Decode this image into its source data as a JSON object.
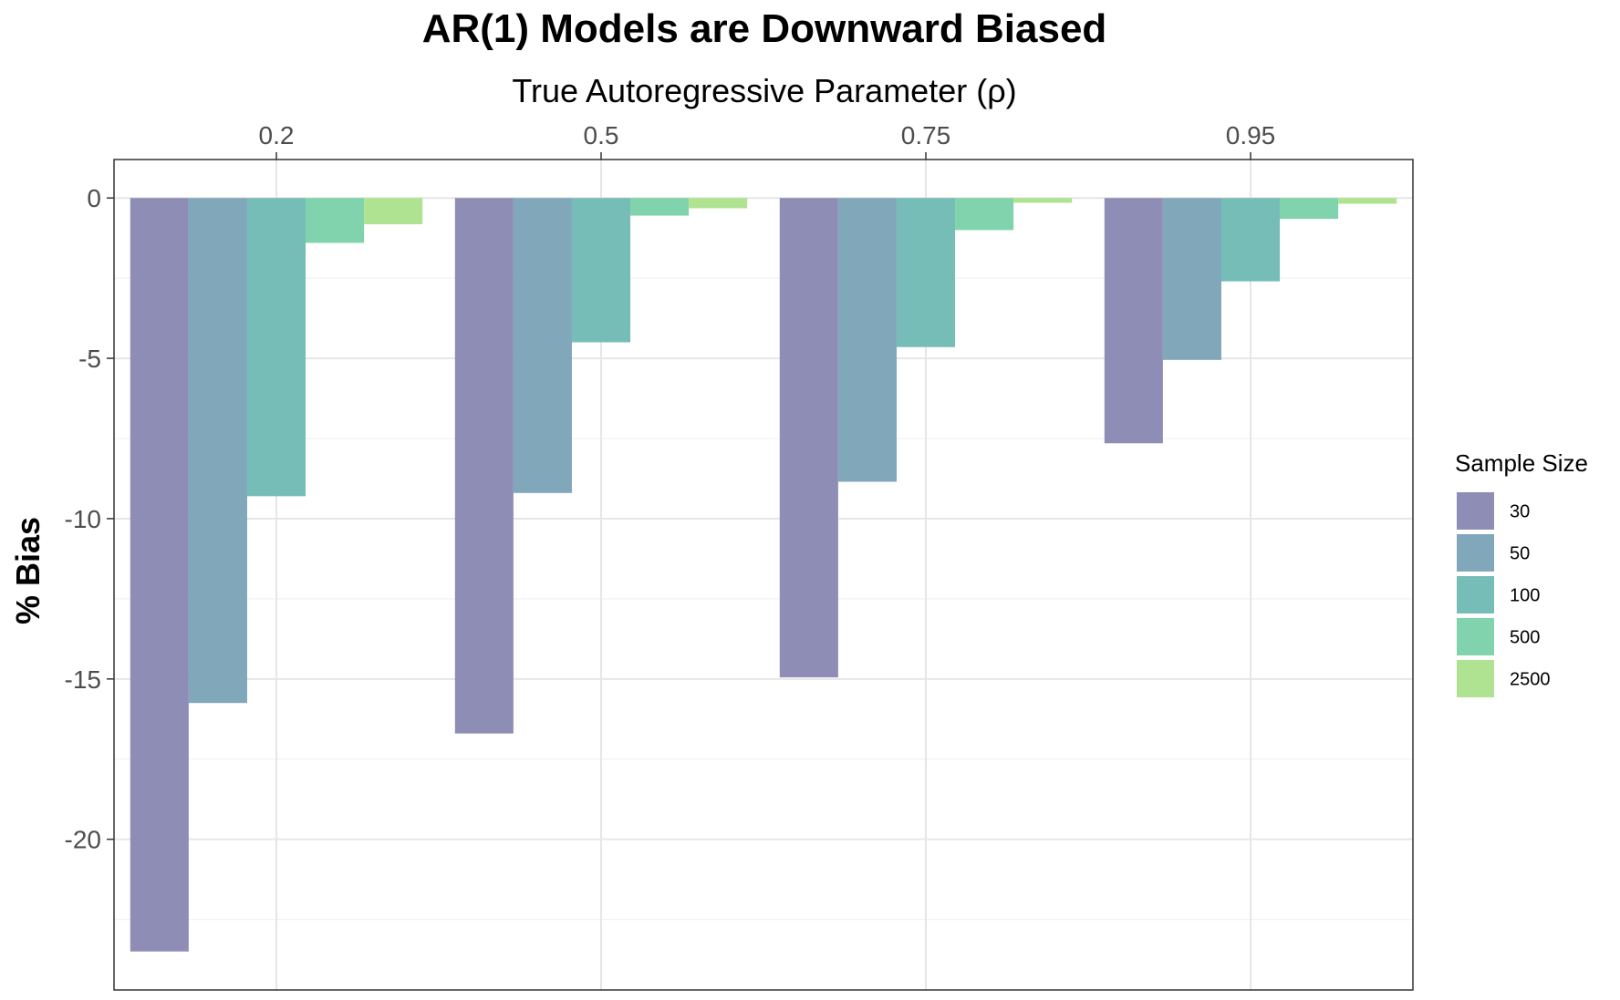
{
  "chart_data": {
    "type": "bar",
    "title": "AR(1) Models are Downward Biased",
    "xlabel": "True Autoregressive Parameter (ρ)",
    "ylabel": "% Bias",
    "x_axis_position": "top",
    "categories": [
      "0.2",
      "0.5",
      "0.75",
      "0.95"
    ],
    "y_ticks": [
      0,
      -5,
      -10,
      -15,
      -20
    ],
    "y_tick_labels": [
      "0",
      "-5",
      "-10",
      "-15",
      "-20"
    ],
    "ylim": [
      -24.7,
      1.2
    ],
    "grid": true,
    "legend": {
      "title": "Sample Size",
      "position": "right"
    },
    "series": [
      {
        "name": "30",
        "color": "#8e8db5",
        "values": [
          -23.5,
          -16.7,
          -14.95,
          -7.65
        ]
      },
      {
        "name": "50",
        "color": "#80a7ba",
        "values": [
          -15.75,
          -9.2,
          -8.85,
          -5.05
        ]
      },
      {
        "name": "100",
        "color": "#76bdb8",
        "values": [
          -9.3,
          -4.5,
          -4.65,
          -2.6
        ]
      },
      {
        "name": "500",
        "color": "#80d3ac",
        "values": [
          -1.4,
          -0.55,
          -1.0,
          -0.65
        ]
      },
      {
        "name": "2500",
        "color": "#b0e391",
        "values": [
          -0.82,
          -0.32,
          -0.15,
          -0.18
        ]
      }
    ]
  }
}
